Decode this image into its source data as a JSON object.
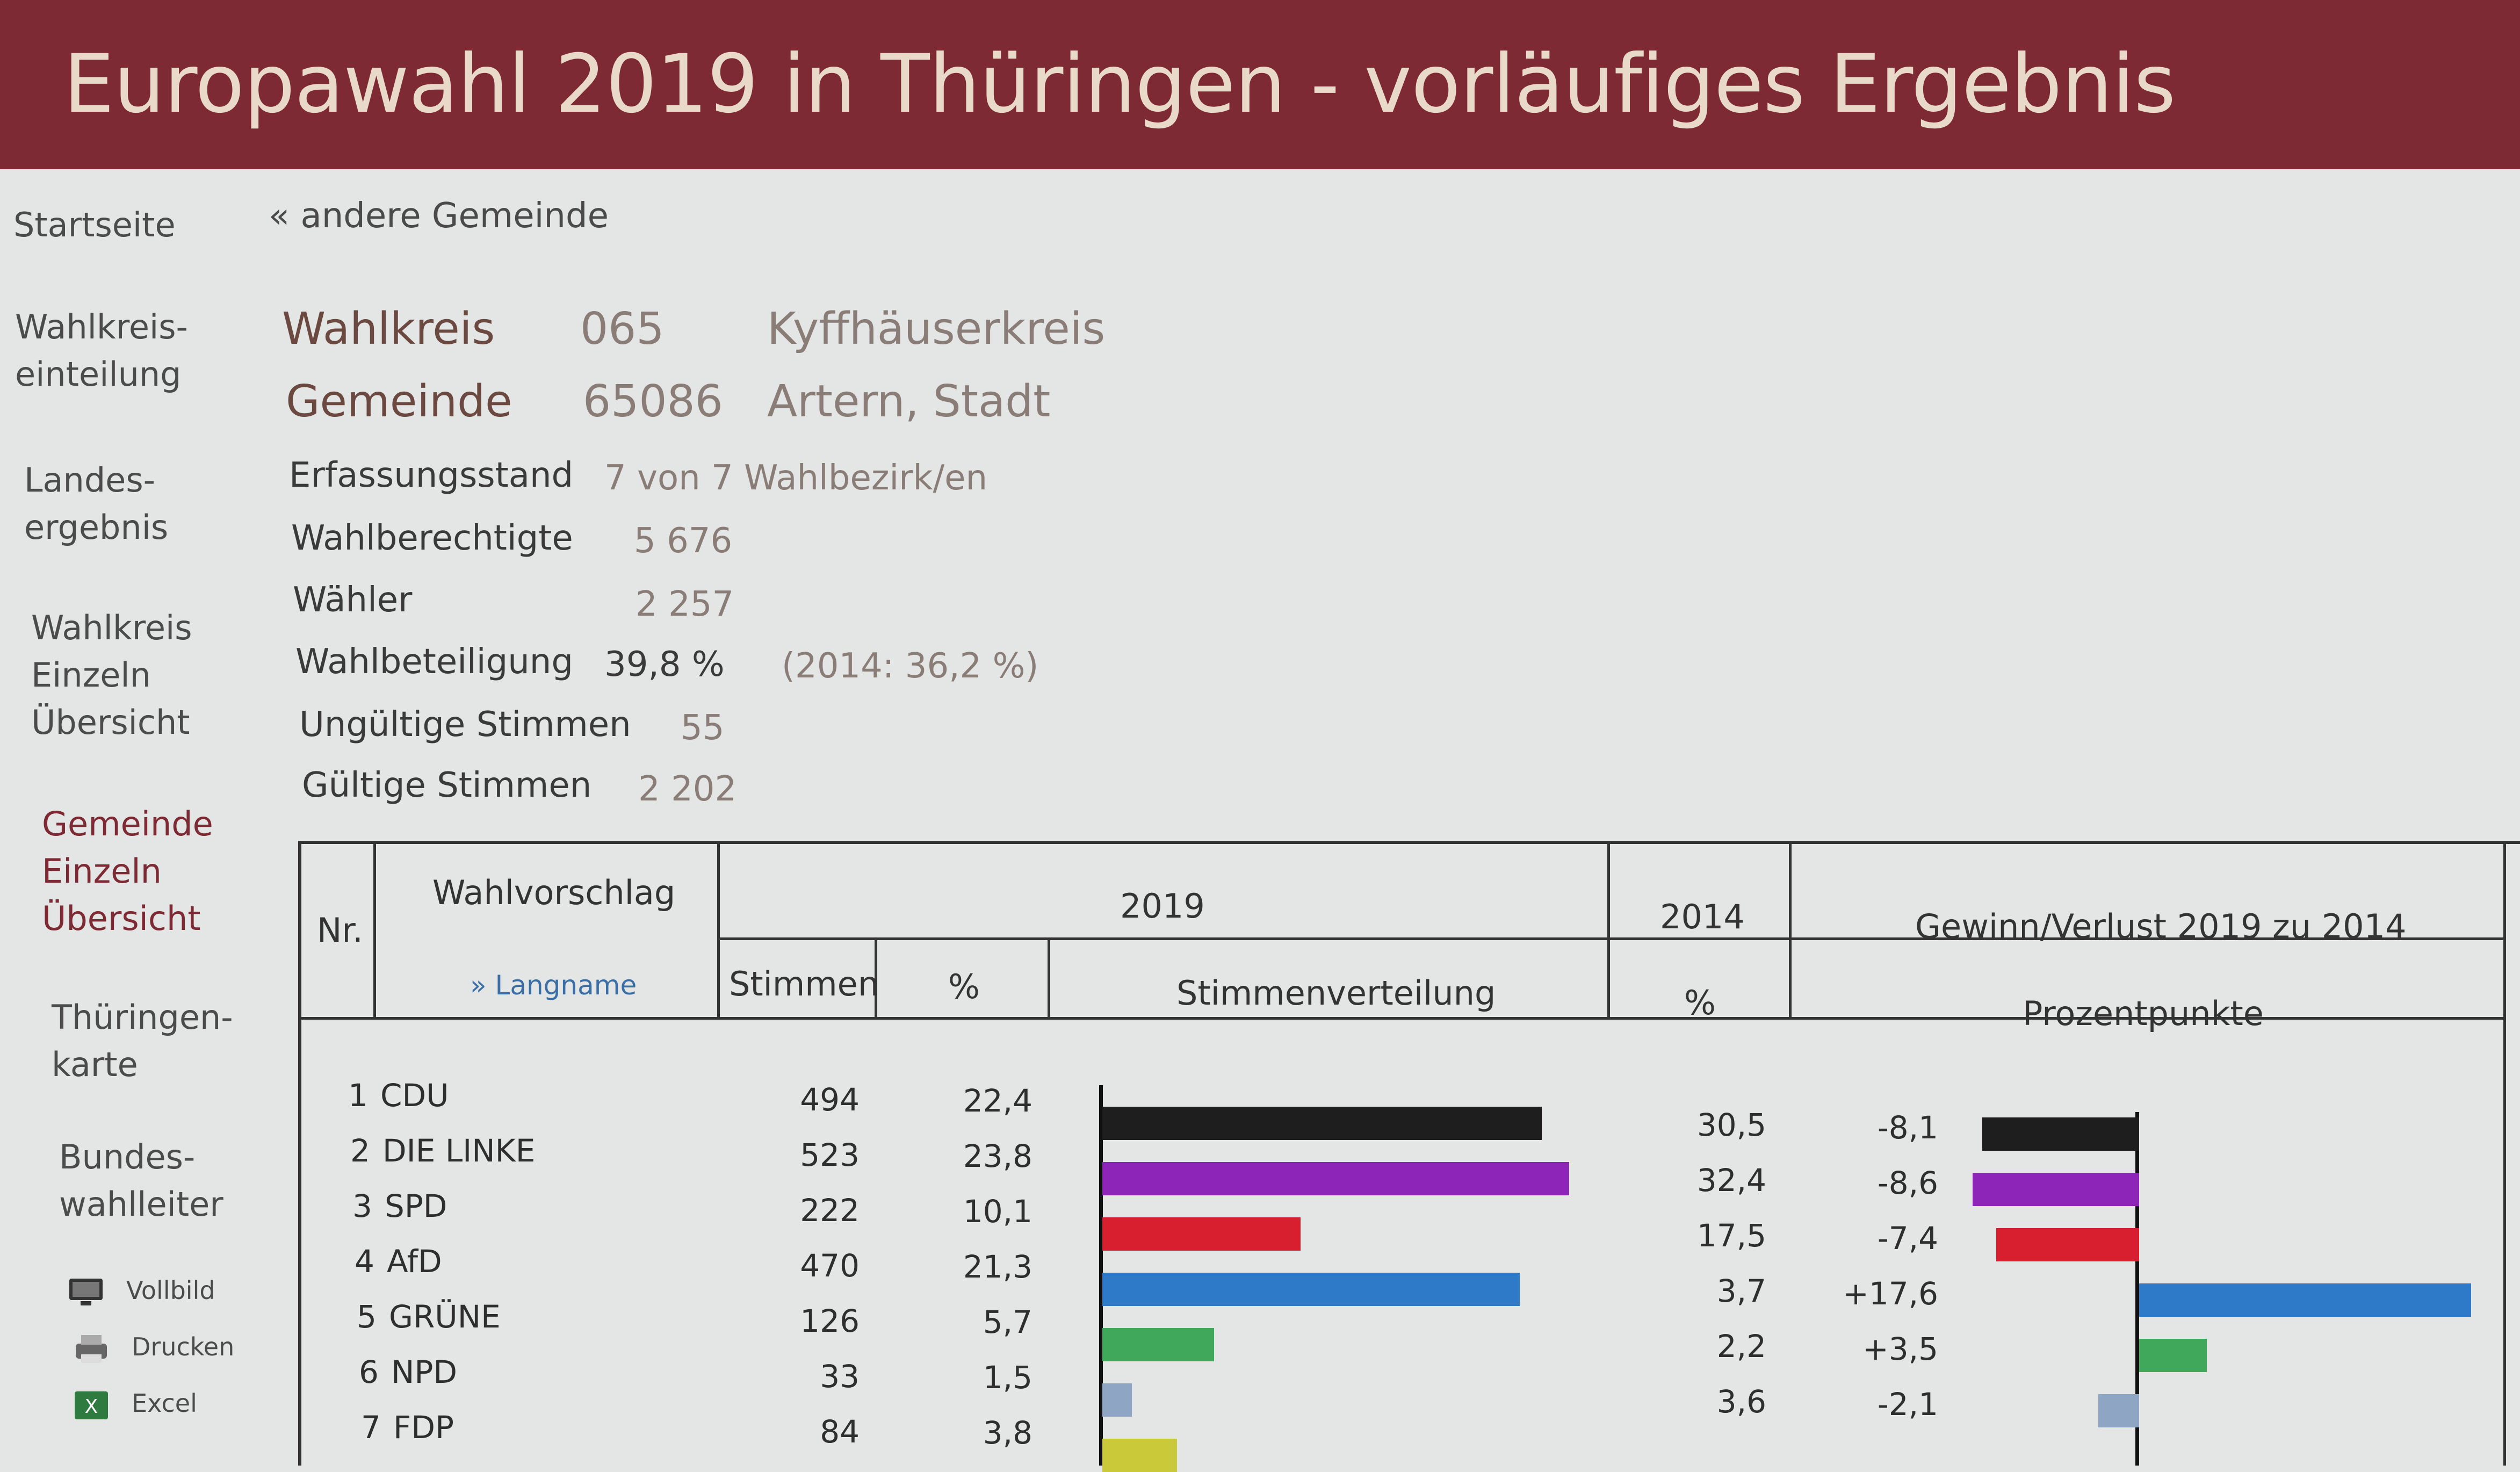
{
  "header": {
    "title": "Europawahl 2019 in Thüringen - vorläufiges Ergebnis"
  },
  "nav": {
    "items": [
      {
        "label": "Startseite"
      },
      {
        "label": "Wahlkreis-\neinteilung"
      },
      {
        "label": "Landes-\nergebnis"
      },
      {
        "label": "Wahlkreis\nEinzeln\nÜbersicht"
      },
      {
        "label": "Gemeinde\nEinzeln\nÜbersicht"
      },
      {
        "label": "Thüringen-\nkarte"
      },
      {
        "label": "Bundes-\nwahlleiter"
      }
    ],
    "tools": [
      {
        "label": "Vollbild",
        "icon": "monitor-icon"
      },
      {
        "label": "Drucken",
        "icon": "printer-icon"
      },
      {
        "label": "Excel",
        "icon": "excel-icon"
      }
    ]
  },
  "back_link": "« andere Gemeinde",
  "info": {
    "wahlkreis": {
      "label": "Wahlkreis",
      "code": "065",
      "name": "Kyffhäuserkreis"
    },
    "gemeinde": {
      "label": "Gemeinde",
      "code": "65086",
      "name": "Artern, Stadt"
    },
    "erfassungsstand": {
      "label": "Erfassungsstand",
      "value": "7 von 7 Wahlbezirk/en"
    },
    "wahlberechtigte": {
      "label": "Wahlberechtigte",
      "value": "5 676"
    },
    "waehler": {
      "label": "Wähler",
      "value": "2 257"
    },
    "wahlbeteiligung": {
      "label": "Wahlbeteiligung",
      "value": "39,8  %",
      "prev": "(2014: 36,2  %)"
    },
    "ungueltig": {
      "label": "Ungültige Stimmen",
      "value": "55"
    },
    "gueltig": {
      "label": "Gültige Stimmen",
      "value": "2 202"
    }
  },
  "table": {
    "headers": {
      "nr": "Nr.",
      "wahlvorschlag": "Wahlvorschlag",
      "langname": "» Langname",
      "y2019": "2019",
      "y2014": "2014",
      "gewinn": "Gewinn/Verlust 2019 zu 2014",
      "stimmen": "Stimmen",
      "pct": "%",
      "verteilung": "Stimmenverteilung",
      "pct2014": "%",
      "prozentpunkte": "Prozentpunkte"
    },
    "rows": [
      {
        "nr": "1",
        "party": "CDU",
        "stimmen": "494",
        "pct": "22,4",
        "pct2014": "30,5",
        "diff": "-8,1",
        "pct_value": 22.4,
        "diff_value": -8.1,
        "color": "#1e1e1e"
      },
      {
        "nr": "2",
        "party": "DIE LINKE",
        "stimmen": "523",
        "pct": "23,8",
        "pct2014": "32,4",
        "diff": "-8,6",
        "pct_value": 23.8,
        "diff_value": -8.6,
        "color": "#8c25b8"
      },
      {
        "nr": "3",
        "party": "SPD",
        "stimmen": "222",
        "pct": "10,1",
        "pct2014": "17,5",
        "diff": "-7,4",
        "pct_value": 10.1,
        "diff_value": -7.4,
        "color": "#d81f2f"
      },
      {
        "nr": "4",
        "party": "AfD",
        "stimmen": "470",
        "pct": "21,3",
        "pct2014": "3,7",
        "diff": "+17,6",
        "pct_value": 21.3,
        "diff_value": 17.6,
        "color": "#2f79c9"
      },
      {
        "nr": "5",
        "party": "GRÜNE",
        "stimmen": "126",
        "pct": "5,7",
        "pct2014": "2,2",
        "diff": "+3,5",
        "pct_value": 5.7,
        "diff_value": 3.5,
        "color": "#3fa85a"
      },
      {
        "nr": "6",
        "party": "NPD",
        "stimmen": "33",
        "pct": "1,5",
        "pct2014": "3,6",
        "diff": "-2,1",
        "pct_value": 1.5,
        "diff_value": -2.1,
        "color": "#8ea6c4"
      },
      {
        "nr": "7",
        "party": "FDP",
        "stimmen": "84",
        "pct": "3,8",
        "pct2014": "",
        "diff": "",
        "pct_value": 3.8,
        "diff_value": null,
        "color": "#c9c93a"
      }
    ]
  }
}
